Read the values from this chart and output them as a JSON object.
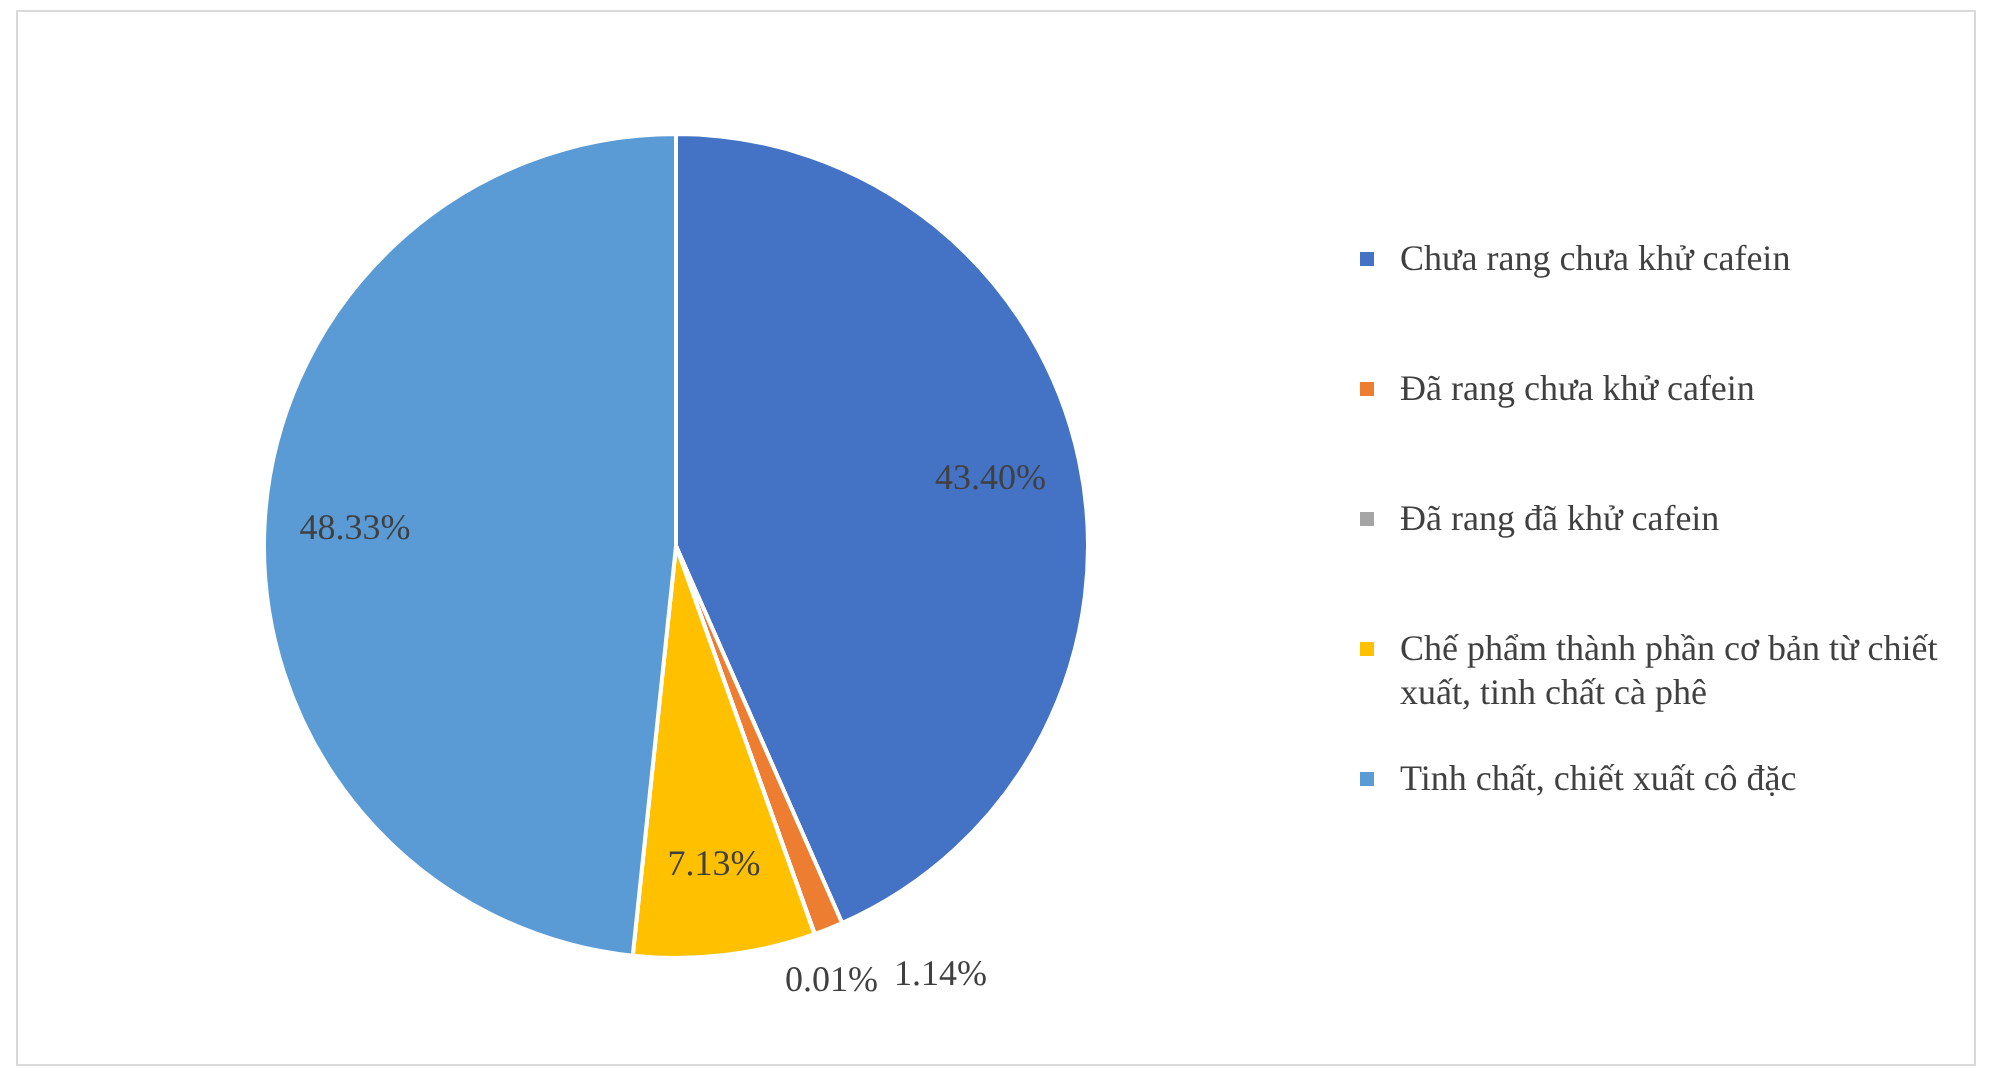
{
  "chart_data": {
    "type": "pie",
    "categories": [
      "Chưa rang chưa khử cafein",
      "Đã rang chưa khử cafein",
      "Đã rang đã khử cafein",
      "Chế phẩm thành phần cơ bản từ chiết xuất, tinh chất cà phê",
      "Tinh chất, chiết xuất cô đặc"
    ],
    "values": [
      43.4,
      1.14,
      0.01,
      7.13,
      48.33
    ],
    "value_labels": [
      "43.40%",
      "1.14%",
      "0.01%",
      "7.13%",
      "48.33%"
    ],
    "colors": [
      "#4472c4",
      "#ed7d31",
      "#a5a5a5",
      "#ffc000",
      "#5b9bd5"
    ],
    "legend": "right"
  }
}
